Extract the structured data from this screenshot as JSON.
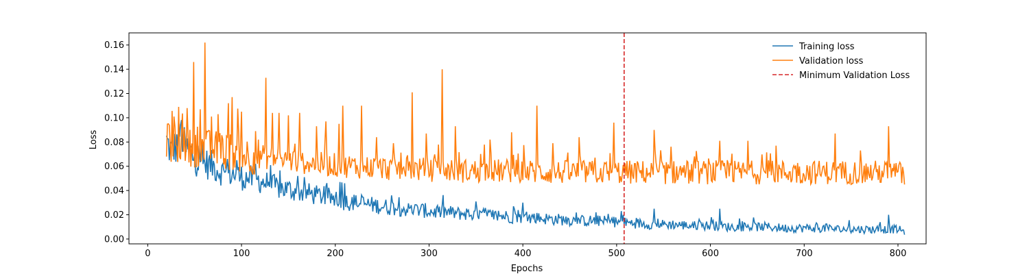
{
  "chart_data": {
    "type": "line",
    "title": "",
    "xlabel": "Epochs",
    "ylabel": "Loss",
    "xlim": [
      -20,
      830
    ],
    "ylim": [
      -0.004,
      0.17
    ],
    "xticks": [
      0,
      100,
      200,
      300,
      400,
      500,
      600,
      700,
      800
    ],
    "yticks": [
      0.0,
      0.02,
      0.04,
      0.06,
      0.08,
      0.1,
      0.12,
      0.14,
      0.16
    ],
    "ytick_format": 2,
    "grid": false,
    "legend_position": "top-right",
    "x_range": [
      20,
      807
    ],
    "series": [
      {
        "name": "Training loss",
        "color": "#1f77b4",
        "style": "solid",
        "values": [
          [
            20,
            0.08
          ],
          [
            25,
            0.072
          ],
          [
            30,
            0.076
          ],
          [
            35,
            0.09
          ],
          [
            40,
            0.074
          ],
          [
            45,
            0.072
          ],
          [
            50,
            0.066
          ],
          [
            55,
            0.064
          ],
          [
            60,
            0.063
          ],
          [
            70,
            0.06
          ],
          [
            80,
            0.055
          ],
          [
            90,
            0.054
          ],
          [
            100,
            0.051
          ],
          [
            110,
            0.05
          ],
          [
            120,
            0.048
          ],
          [
            130,
            0.045
          ],
          [
            140,
            0.042
          ],
          [
            150,
            0.041
          ],
          [
            160,
            0.039
          ],
          [
            170,
            0.038
          ],
          [
            180,
            0.036
          ],
          [
            190,
            0.035
          ],
          [
            200,
            0.033
          ],
          [
            210,
            0.031
          ],
          [
            220,
            0.03
          ],
          [
            230,
            0.029
          ],
          [
            240,
            0.028
          ],
          [
            250,
            0.027
          ],
          [
            260,
            0.026
          ],
          [
            270,
            0.025
          ],
          [
            280,
            0.024
          ],
          [
            290,
            0.024
          ],
          [
            300,
            0.023
          ],
          [
            310,
            0.022
          ],
          [
            320,
            0.022
          ],
          [
            330,
            0.021
          ],
          [
            340,
            0.021
          ],
          [
            350,
            0.02
          ],
          [
            360,
            0.02
          ],
          [
            370,
            0.019
          ],
          [
            380,
            0.019
          ],
          [
            390,
            0.018
          ],
          [
            400,
            0.018
          ],
          [
            420,
            0.017
          ],
          [
            440,
            0.016
          ],
          [
            460,
            0.015
          ],
          [
            480,
            0.015
          ],
          [
            500,
            0.014
          ],
          [
            520,
            0.013
          ],
          [
            540,
            0.012
          ],
          [
            560,
            0.012
          ],
          [
            580,
            0.011
          ],
          [
            600,
            0.011
          ],
          [
            620,
            0.01
          ],
          [
            640,
            0.01
          ],
          [
            660,
            0.01
          ],
          [
            680,
            0.009
          ],
          [
            700,
            0.009
          ],
          [
            720,
            0.009
          ],
          [
            740,
            0.008
          ],
          [
            760,
            0.008
          ],
          [
            780,
            0.008
          ],
          [
            800,
            0.008
          ],
          [
            807,
            0.006
          ]
        ],
        "spikes": [
          [
            35,
            0.094
          ],
          [
            55,
            0.077
          ],
          [
            85,
            0.066
          ],
          [
            95,
            0.065
          ],
          [
            115,
            0.062
          ],
          [
            160,
            0.052
          ],
          [
            205,
            0.047
          ],
          [
            210,
            0.046
          ],
          [
            260,
            0.036
          ],
          [
            350,
            0.031
          ],
          [
            390,
            0.027
          ],
          [
            400,
            0.03
          ],
          [
            505,
            0.023
          ],
          [
            540,
            0.025
          ],
          [
            610,
            0.025
          ],
          [
            790,
            0.02
          ]
        ]
      },
      {
        "name": "Validation loss",
        "color": "#ff7f0e",
        "style": "solid",
        "values": [
          [
            20,
            0.08
          ],
          [
            30,
            0.078
          ],
          [
            40,
            0.076
          ],
          [
            50,
            0.075
          ],
          [
            60,
            0.075
          ],
          [
            70,
            0.074
          ],
          [
            80,
            0.073
          ],
          [
            90,
            0.072
          ],
          [
            100,
            0.07
          ],
          [
            120,
            0.068
          ],
          [
            140,
            0.066
          ],
          [
            160,
            0.064
          ],
          [
            180,
            0.062
          ],
          [
            200,
            0.061
          ],
          [
            220,
            0.06
          ],
          [
            240,
            0.059
          ],
          [
            260,
            0.058
          ],
          [
            280,
            0.058
          ],
          [
            300,
            0.057
          ],
          [
            320,
            0.057
          ],
          [
            340,
            0.056
          ],
          [
            360,
            0.056
          ],
          [
            380,
            0.056
          ],
          [
            400,
            0.056
          ],
          [
            420,
            0.055
          ],
          [
            440,
            0.055
          ],
          [
            460,
            0.055
          ],
          [
            480,
            0.055
          ],
          [
            500,
            0.055
          ],
          [
            520,
            0.055
          ],
          [
            540,
            0.055
          ],
          [
            560,
            0.055
          ],
          [
            580,
            0.055
          ],
          [
            600,
            0.055
          ],
          [
            620,
            0.055
          ],
          [
            640,
            0.055
          ],
          [
            660,
            0.055
          ],
          [
            680,
            0.055
          ],
          [
            700,
            0.055
          ],
          [
            720,
            0.055
          ],
          [
            740,
            0.055
          ],
          [
            760,
            0.055
          ],
          [
            780,
            0.055
          ],
          [
            800,
            0.055
          ],
          [
            807,
            0.052
          ]
        ],
        "spikes": [
          [
            22,
            0.095
          ],
          [
            28,
            0.101
          ],
          [
            33,
            0.109
          ],
          [
            42,
            0.108
          ],
          [
            49,
            0.146
          ],
          [
            56,
            0.107
          ],
          [
            61,
            0.162
          ],
          [
            68,
            0.101
          ],
          [
            75,
            0.103
          ],
          [
            86,
            0.112
          ],
          [
            90,
            0.117
          ],
          [
            100,
            0.105
          ],
          [
            115,
            0.089
          ],
          [
            126,
            0.133
          ],
          [
            133,
            0.104
          ],
          [
            140,
            0.104
          ],
          [
            150,
            0.102
          ],
          [
            162,
            0.104
          ],
          [
            180,
            0.093
          ],
          [
            190,
            0.097
          ],
          [
            204,
            0.095
          ],
          [
            208,
            0.11
          ],
          [
            228,
            0.11
          ],
          [
            244,
            0.084
          ],
          [
            262,
            0.079
          ],
          [
            282,
            0.121
          ],
          [
            297,
            0.087
          ],
          [
            314,
            0.14
          ],
          [
            328,
            0.093
          ],
          [
            365,
            0.082
          ],
          [
            388,
            0.088
          ],
          [
            415,
            0.11
          ],
          [
            432,
            0.079
          ],
          [
            460,
            0.084
          ],
          [
            497,
            0.096
          ],
          [
            540,
            0.09
          ],
          [
            610,
            0.081
          ],
          [
            640,
            0.081
          ],
          [
            670,
            0.077
          ],
          [
            733,
            0.087
          ],
          [
            760,
            0.073
          ],
          [
            790,
            0.093
          ]
        ]
      }
    ],
    "reference_line": {
      "name": "Minimum Validation Loss",
      "x": 508,
      "color": "#d62728",
      "style": "dashed"
    }
  }
}
